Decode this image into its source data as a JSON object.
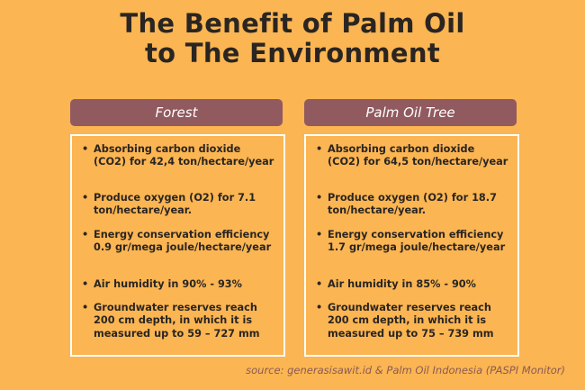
{
  "title": {
    "line1": "The Benefit of Palm Oil",
    "line2": "to The Environment"
  },
  "columns": [
    {
      "header": "Forest",
      "items": [
        "Absorbing carbon dioxide (CO2) for 42,4 ton/hectare/year",
        "Produce oxygen (O2) for 7.1 ton/hectare/year.",
        "Energy conservation efficiency 0.9 gr/mega joule/hectare/year",
        "Air humidity in 90% - 93%",
        "Groundwater reserves reach 200 cm depth, in which it is measured up to 59 – 727 mm"
      ]
    },
    {
      "header": "Palm Oil Tree",
      "items": [
        "Absorbing carbon dioxide (CO2) for 64,5 ton/hectare/year",
        "Produce oxygen (O2) for 18.7 ton/hectare/year.",
        "Energy conservation efficiency 1.7 gr/mega joule/hectare/year",
        "Air humidity in 85% - 90%",
        "Groundwater reserves reach 200 cm depth, in which it is measured up to 75 – 739 mm"
      ]
    }
  ],
  "bullet": "•",
  "source": "source: generasisawit.id & Palm Oil Indonesia (PASPI Monitor)"
}
